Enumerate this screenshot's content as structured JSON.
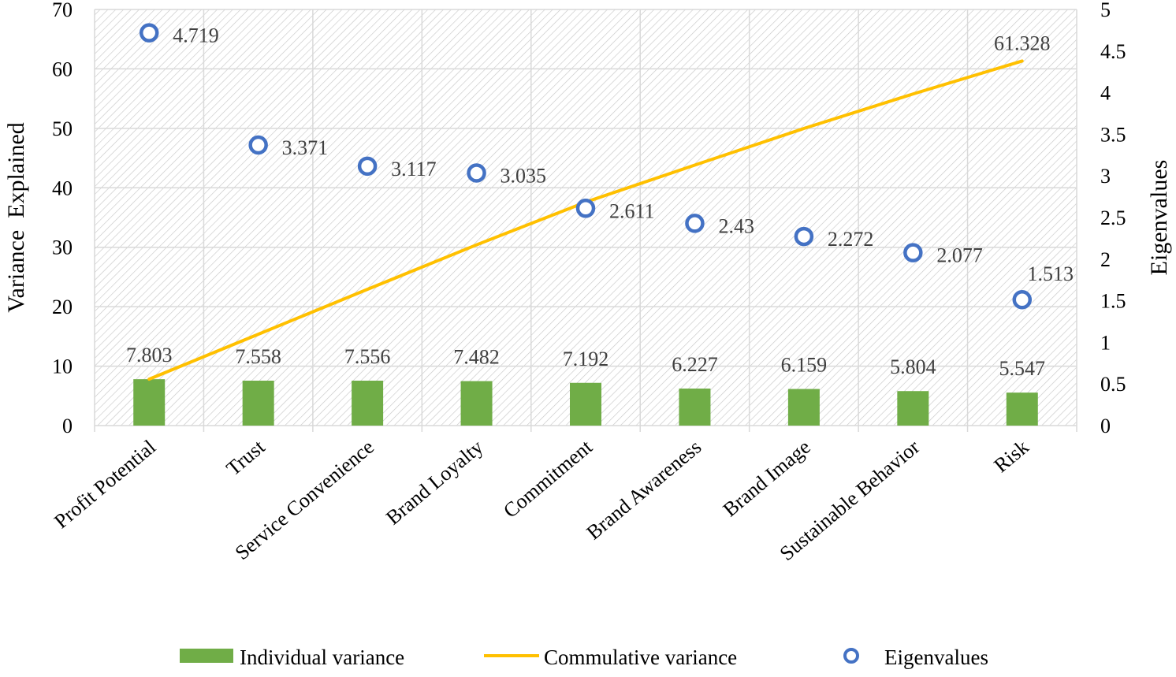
{
  "chart_data": {
    "type": "bar",
    "categories": [
      "Profit Potential",
      "Trust",
      "Service Convenience",
      "Brand Loyalty",
      "Commitment",
      "Brand Awareness",
      "Brand Image",
      "Sustainable Behavior",
      "Risk"
    ],
    "series": [
      {
        "name": "Individual variance",
        "type": "bar",
        "axis": "left",
        "color": "#70AD47",
        "values": [
          7.803,
          7.558,
          7.556,
          7.482,
          7.192,
          6.227,
          6.159,
          5.804,
          5.547
        ],
        "labels": [
          "7.803",
          "7.558",
          "7.556",
          "7.482",
          "7.192",
          "6.227",
          "6.159",
          "5.804",
          "5.547"
        ]
      },
      {
        "name": "Commulative variance",
        "type": "line",
        "axis": "left",
        "color": "#FFC000",
        "values": [
          7.803,
          15.361,
          22.917,
          30.399,
          37.591,
          43.818,
          49.977,
          55.781,
          61.328
        ],
        "end_label": "61.328"
      },
      {
        "name": "Eigenvalues",
        "type": "scatter",
        "axis": "right",
        "color": "#4472C4",
        "values": [
          4.719,
          3.371,
          3.117,
          3.035,
          2.611,
          2.43,
          2.272,
          2.077,
          1.513
        ],
        "labels": [
          "4.719",
          "3.371",
          "3.117",
          "3.035",
          "2.611",
          "2.43",
          "2.272",
          "2.077",
          "1.513"
        ]
      }
    ],
    "ylabel": "Variance  Explained",
    "y2label": "Eigenvalues",
    "ylim": [
      0,
      70
    ],
    "y2lim": [
      0,
      5
    ],
    "yticks": [
      "0",
      "10",
      "20",
      "30",
      "40",
      "50",
      "60",
      "70"
    ],
    "y2ticks": [
      "0",
      "0.5",
      "1",
      "1.5",
      "2",
      "2.5",
      "3",
      "3.5",
      "4",
      "4.5",
      "5"
    ],
    "grid": true,
    "legend_position": "bottom"
  }
}
